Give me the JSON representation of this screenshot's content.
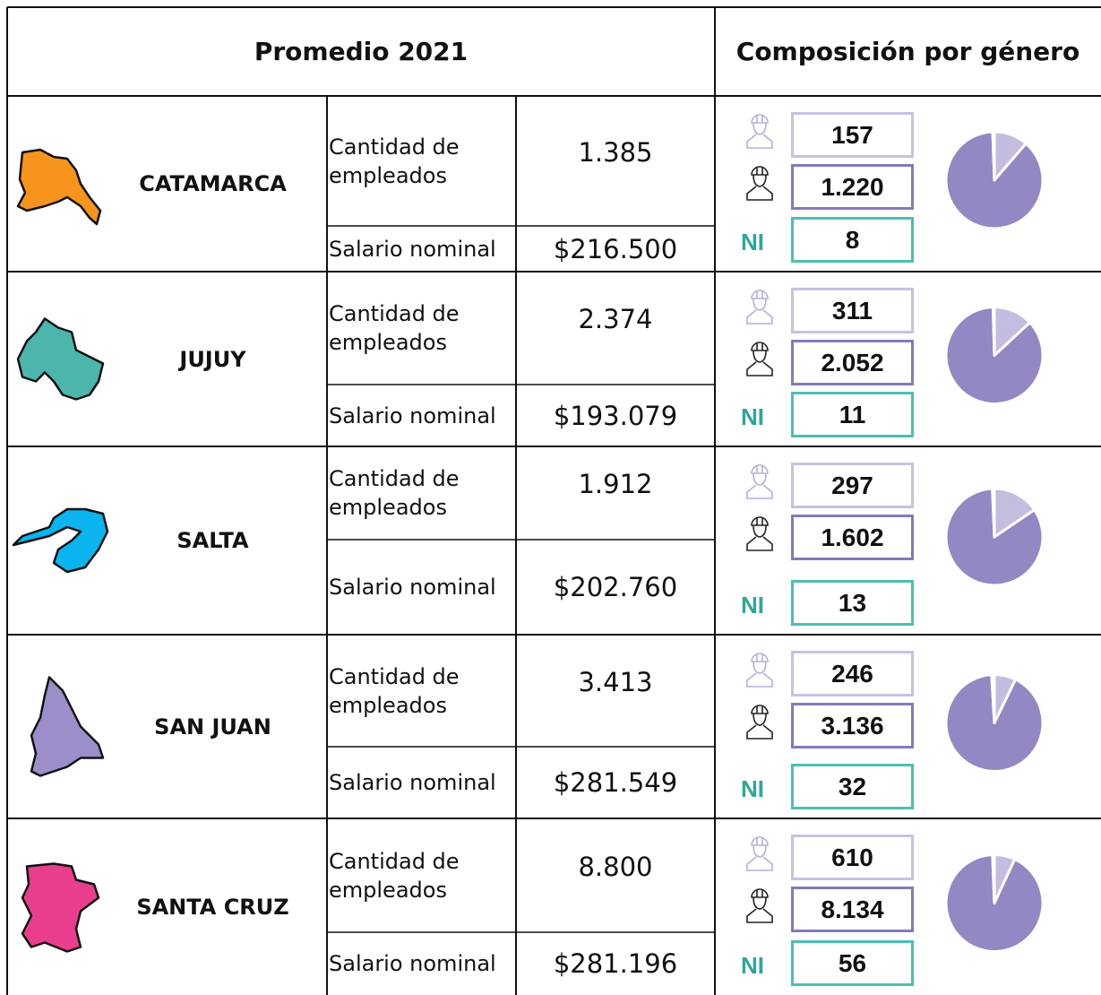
{
  "header": {
    "left": "Promedio 2021",
    "right": "Composición por género"
  },
  "rows": [
    {
      "province": "CATAMARCA",
      "employees_label": "Cantidad de empleados",
      "employees": "1.385",
      "salary_label": "Salario nominal",
      "salary": "$216.500",
      "women": "157",
      "men": "1.220",
      "ni_label": "NI",
      "ni": "8"
    },
    {
      "province": "JUJUY",
      "employees_label": "Cantidad de empleados",
      "employees": "2.374",
      "salary_label": "Salario nominal",
      "salary": "$193.079",
      "women": "311",
      "men": "2.052",
      "ni_label": "NI",
      "ni": "11"
    },
    {
      "province": "SALTA",
      "employees_label": "Cantidad de empleados",
      "employees": "1.912",
      "salary_label": "Salario nominal",
      "salary": "$202.760",
      "women": "297",
      "men": "1.602",
      "ni_label": "NI",
      "ni": "13"
    },
    {
      "province": "SAN JUAN",
      "employees_label": "Cantidad de empleados",
      "employees": "3.413",
      "salary_label": "Salario nominal",
      "salary": "$281.549",
      "women": "246",
      "men": "3.136",
      "ni_label": "NI",
      "ni": "32"
    },
    {
      "province": "SANTA CRUZ",
      "employees_label": "Cantidad de empleados",
      "employees": "8.800",
      "salary_label": "Salario nominal",
      "salary": "$281.196",
      "women": "610",
      "men": "8.134",
      "ni_label": "NI",
      "ni": "56"
    }
  ]
}
